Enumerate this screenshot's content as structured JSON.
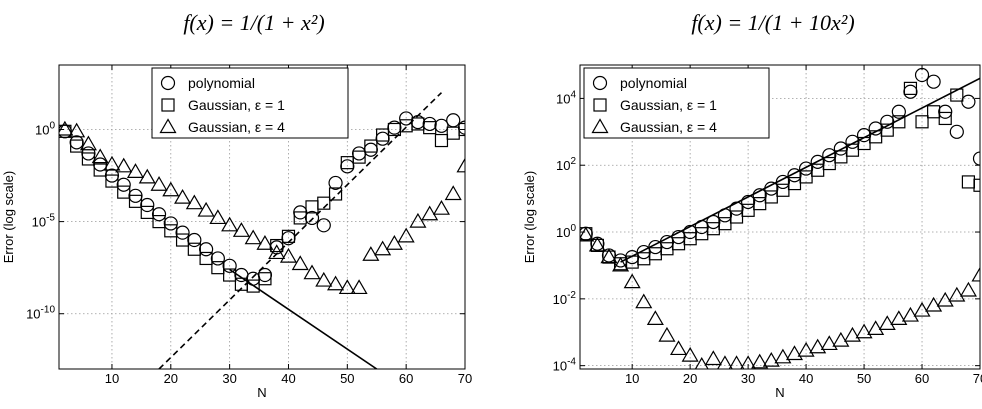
{
  "chart_data": [
    {
      "type": "scatter",
      "title": "f(x) = 1/(1 + x²)",
      "xlabel": "N",
      "ylabel": "Error (log scale)",
      "xlim": [
        1,
        70
      ],
      "xticks": [
        10,
        20,
        30,
        40,
        50,
        60,
        70
      ],
      "ylim_log10": [
        -13,
        3.5
      ],
      "yticks": [
        {
          "exp": 0,
          "label": "10",
          "sup": "0"
        },
        {
          "exp": -5,
          "label": "10",
          "sup": "-5"
        },
        {
          "exp": -10,
          "label": "10",
          "sup": "-10"
        }
      ],
      "grid": true,
      "legend_position": "top-right",
      "series": [
        {
          "name": "polynomial",
          "marker": "circle",
          "x": [
            2,
            4,
            6,
            8,
            10,
            12,
            14,
            16,
            18,
            20,
            22,
            24,
            26,
            28,
            30,
            32,
            34,
            36,
            38,
            40,
            42,
            44,
            46,
            48,
            50,
            52,
            54,
            56,
            58,
            60,
            62,
            64,
            66,
            68,
            70
          ],
          "log10_y": [
            -0.1,
            -0.7,
            -1.3,
            -1.9,
            -2.5,
            -3.0,
            -3.6,
            -4.1,
            -4.6,
            -5.1,
            -5.6,
            -6.0,
            -6.5,
            -7.0,
            -7.4,
            -7.9,
            -8.1,
            -7.9,
            -6.4,
            -5.9,
            -4.5,
            -4.8,
            -5.2,
            -2.9,
            -2.0,
            -1.3,
            -1.1,
            -0.5,
            0.1,
            0.6,
            0.4,
            0.3,
            0.2,
            0.5,
            0.1
          ]
        },
        {
          "name": "Gaussian, ε = 1",
          "marker": "square",
          "x": [
            2,
            4,
            6,
            8,
            10,
            12,
            14,
            16,
            18,
            20,
            22,
            24,
            26,
            28,
            30,
            32,
            34,
            36,
            38,
            40,
            42,
            44,
            46,
            48,
            50,
            52,
            54,
            56,
            58,
            60,
            62,
            64,
            66,
            68,
            70
          ],
          "log10_y": [
            -0.1,
            -0.9,
            -1.6,
            -2.2,
            -2.8,
            -3.4,
            -3.9,
            -4.5,
            -5.0,
            -5.5,
            -6.0,
            -6.5,
            -7.0,
            -7.5,
            -7.9,
            -8.4,
            -8.5,
            -8.1,
            -6.3,
            -5.8,
            -4.8,
            -4.2,
            -4.0,
            -3.5,
            -1.8,
            -1.5,
            -0.9,
            -0.3,
            0.0,
            0.2,
            0.3,
            0.1,
            -0.6,
            -0.2,
            0.0
          ]
        },
        {
          "name": "Gaussian, ε = 4",
          "marker": "triangle",
          "x": [
            2,
            4,
            6,
            8,
            10,
            12,
            14,
            16,
            18,
            20,
            22,
            24,
            26,
            28,
            30,
            32,
            34,
            36,
            38,
            40,
            42,
            44,
            46,
            48,
            50,
            52,
            54,
            56,
            58,
            60,
            62,
            64,
            66,
            68,
            70
          ],
          "log10_y": [
            0.0,
            -0.1,
            -0.8,
            -1.5,
            -1.9,
            -2.0,
            -2.3,
            -2.6,
            -3.0,
            -3.3,
            -3.7,
            -4.0,
            -4.4,
            -4.8,
            -5.2,
            -5.5,
            -5.9,
            -6.2,
            -6.7,
            -6.9,
            -7.3,
            -7.8,
            -8.2,
            -8.4,
            -8.6,
            -8.6,
            -6.8,
            -6.5,
            -6.2,
            -5.8,
            -5.0,
            -4.6,
            -4.3,
            -3.5,
            -2.0
          ]
        },
        {
          "name": "",
          "style": "solid-line",
          "x": [
            30,
            55
          ],
          "log10_y": [
            -7.6,
            -13.0
          ]
        },
        {
          "name": "",
          "style": "dashed-line",
          "x": [
            18,
            66
          ],
          "log10_y": [
            -13.0,
            2.0
          ]
        }
      ]
    },
    {
      "type": "scatter",
      "title": "f(x) = 1/(1 + 10x²)",
      "xlabel": "N",
      "ylabel": "Error (log scale)",
      "xlim": [
        1,
        70
      ],
      "xticks": [
        10,
        20,
        30,
        40,
        50,
        60,
        70
      ],
      "ylim_log10": [
        -4.1,
        5
      ],
      "yticks": [
        {
          "exp": 4,
          "label": "10",
          "sup": "4"
        },
        {
          "exp": 2,
          "label": "10",
          "sup": "2"
        },
        {
          "exp": 0,
          "label": "10",
          "sup": "0"
        },
        {
          "exp": -2,
          "label": "10",
          "sup": "-2"
        },
        {
          "exp": -4,
          "label": "10",
          "sup": "-4"
        }
      ],
      "grid": true,
      "legend_position": "top-left",
      "series": [
        {
          "name": "polynomial",
          "marker": "circle",
          "x": [
            2,
            4,
            6,
            8,
            10,
            12,
            14,
            16,
            18,
            20,
            22,
            24,
            26,
            28,
            30,
            32,
            34,
            36,
            38,
            40,
            42,
            44,
            46,
            48,
            50,
            52,
            54,
            56,
            58,
            60,
            62,
            64,
            66,
            68,
            70
          ],
          "log10_y": [
            -0.05,
            -0.35,
            -0.7,
            -0.85,
            -0.75,
            -0.6,
            -0.45,
            -0.3,
            -0.15,
            0.0,
            0.15,
            0.3,
            0.5,
            0.7,
            0.9,
            1.1,
            1.3,
            1.5,
            1.7,
            1.9,
            2.1,
            2.3,
            2.5,
            2.7,
            2.9,
            3.1,
            3.3,
            3.6,
            4.2,
            4.7,
            4.5,
            3.6,
            3.0,
            3.9,
            2.2
          ]
        },
        {
          "name": "Gaussian, ε = 1",
          "marker": "square",
          "x": [
            2,
            4,
            6,
            8,
            10,
            12,
            14,
            16,
            18,
            20,
            22,
            24,
            26,
            28,
            30,
            32,
            34,
            36,
            38,
            40,
            42,
            44,
            46,
            48,
            50,
            52,
            54,
            56,
            58,
            60,
            62,
            64,
            66,
            68,
            70
          ],
          "log10_y": [
            -0.05,
            -0.4,
            -0.75,
            -0.95,
            -0.9,
            -0.8,
            -0.65,
            -0.5,
            -0.35,
            -0.2,
            -0.05,
            0.1,
            0.25,
            0.45,
            0.65,
            0.85,
            1.05,
            1.25,
            1.45,
            1.65,
            1.85,
            2.05,
            2.25,
            2.45,
            2.65,
            2.85,
            3.05,
            3.3,
            4.3,
            3.3,
            3.6,
            3.4,
            4.1,
            1.5,
            1.4
          ]
        },
        {
          "name": "Gaussian, ε = 4",
          "marker": "triangle",
          "x": [
            2,
            4,
            6,
            8,
            10,
            12,
            14,
            16,
            18,
            20,
            22,
            24,
            26,
            28,
            30,
            32,
            34,
            36,
            38,
            40,
            42,
            44,
            46,
            48,
            50,
            52,
            54,
            56,
            58,
            60,
            62,
            64,
            66,
            68,
            70
          ],
          "log10_y": [
            -0.1,
            -0.4,
            -0.75,
            -1.0,
            -1.5,
            -2.1,
            -2.6,
            -3.1,
            -3.5,
            -3.7,
            -4.0,
            -3.8,
            -3.95,
            -3.95,
            -3.95,
            -3.9,
            -3.85,
            -3.75,
            -3.65,
            -3.55,
            -3.45,
            -3.35,
            -3.25,
            -3.1,
            -3.0,
            -2.9,
            -2.75,
            -2.6,
            -2.5,
            -2.35,
            -2.2,
            -2.05,
            -1.9,
            -1.75,
            -1.3
          ]
        },
        {
          "name": "",
          "style": "solid-line",
          "x": [
            8,
            70
          ],
          "log10_y": [
            -0.9,
            4.6
          ]
        }
      ]
    }
  ]
}
